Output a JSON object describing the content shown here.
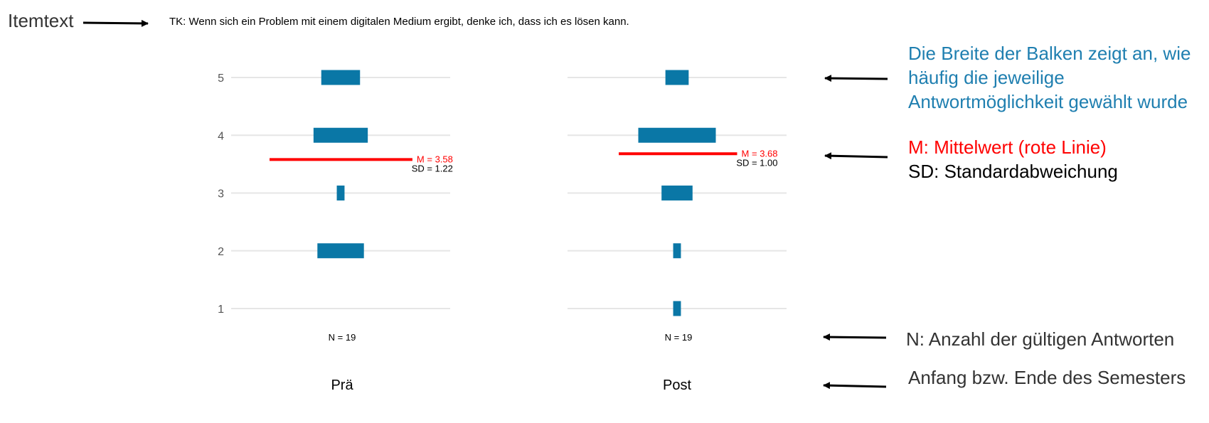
{
  "item_label": "Itemtext",
  "item_text": "TK: Wenn sich ein Problem mit einem digitalen Medium ergibt, denke ich, dass ich es lösen kann.",
  "explanations": {
    "width": "Die Breite der Balken zeigt an, wie häufig die jeweilige Antwortmöglichkeit gewählt wurde",
    "mean": "M: Mittelwert (rote Linie)",
    "sd": "SD: Standardabweichung",
    "n": "N: Anzahl der gültigen Antworten",
    "time": "Anfang bzw. Ende des Semesters"
  },
  "colors": {
    "bar": "#0a77a6",
    "mean_line": "#ff0000",
    "grid": "#e6e6e6",
    "width_text": "#1f7fb0",
    "arrow": "#000000"
  },
  "chart_data": {
    "type": "bar",
    "orientation": "horizontal-centered",
    "categories": [
      "1",
      "2",
      "3",
      "4",
      "5"
    ],
    "ylim": [
      1,
      5
    ],
    "grid": true,
    "panels": [
      {
        "name": "Prä",
        "counts": [
          0,
          6,
          1,
          7,
          5
        ],
        "mean": 3.58,
        "mean_label": "M = 3.58",
        "sd": 1.22,
        "sd_label": "SD = 1.22",
        "n_label": "N = 19"
      },
      {
        "name": "Post",
        "counts": [
          1,
          1,
          4,
          10,
          3
        ],
        "mean": 3.68,
        "mean_label": "M = 3.68",
        "sd": 1.0,
        "sd_label": "SD = 1.00",
        "n_label": "N = 19"
      }
    ]
  }
}
